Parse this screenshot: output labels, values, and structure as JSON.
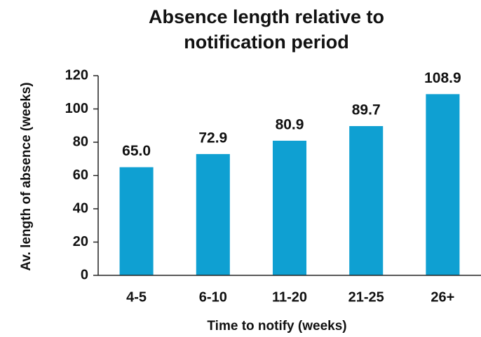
{
  "chart_data": {
    "type": "bar",
    "title": "Absence length relative to notification period",
    "x_label": "Time to notify (weeks)",
    "y_label": "Av. length of absence (weeks)",
    "categories": [
      "4-5",
      "6-10",
      "11-20",
      "21-25",
      "26+"
    ],
    "values": [
      65.0,
      72.9,
      80.9,
      89.7,
      108.9
    ],
    "value_labels": [
      "65.0",
      "72.9",
      "80.9",
      "89.7",
      "108.9"
    ],
    "color": "#0fa0d2",
    "ylim": [
      0,
      120
    ],
    "yticks": [
      0,
      20,
      40,
      60,
      80,
      100,
      120
    ],
    "grid": false
  }
}
